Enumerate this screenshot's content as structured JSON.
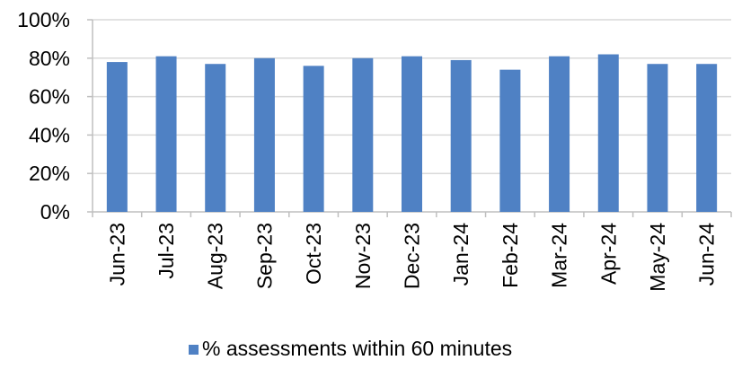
{
  "chart_data": {
    "type": "bar",
    "title": "",
    "xlabel": "",
    "ylabel": "",
    "categories": [
      "Jun-23",
      "Jul-23",
      "Aug-23",
      "Sep-23",
      "Oct-23",
      "Nov-23",
      "Dec-23",
      "Jan-24",
      "Feb-24",
      "Mar-24",
      "Apr-24",
      "May-24",
      "Jun-24"
    ],
    "series": [
      {
        "name": "% assessments within 60 minutes",
        "values": [
          78,
          81,
          77,
          80,
          76,
          80,
          81,
          79,
          74,
          81,
          82,
          77,
          77
        ],
        "color": "#4f81c4"
      }
    ],
    "ylim": [
      0,
      100
    ],
    "yticks": [
      "0%",
      "20%",
      "40%",
      "60%",
      "80%",
      "100%"
    ],
    "gridlines": true,
    "gridline_color": "#d9d9d9",
    "legend_position": "bottom"
  }
}
